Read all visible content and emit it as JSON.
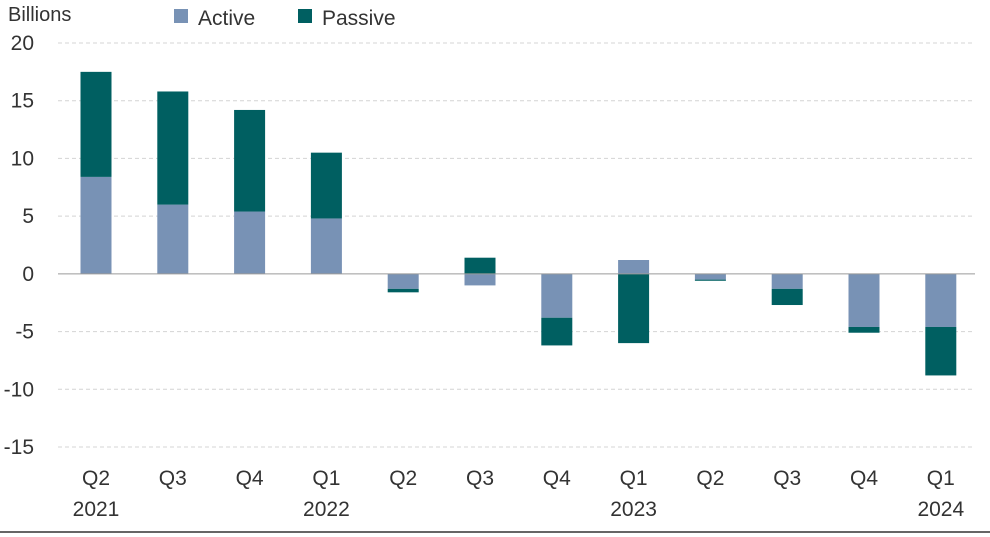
{
  "chart_data": {
    "type": "bar",
    "stacked": true,
    "title": "",
    "xlabel": "",
    "ylabel": "Billions",
    "ylim": [
      -15,
      20
    ],
    "yticks": [
      20,
      15,
      10,
      5,
      0,
      -5,
      -10,
      -15
    ],
    "grid": true,
    "legend_position": "top-left",
    "categories": [
      [
        "Q2",
        "2021"
      ],
      [
        "Q3",
        ""
      ],
      [
        "Q4",
        ""
      ],
      [
        "Q1",
        "2022"
      ],
      [
        "Q2",
        ""
      ],
      [
        "Q3",
        ""
      ],
      [
        "Q4",
        ""
      ],
      [
        "Q1",
        "2023"
      ],
      [
        "Q2",
        ""
      ],
      [
        "Q3",
        ""
      ],
      [
        "Q4",
        ""
      ],
      [
        "Q1",
        "2024"
      ]
    ],
    "series": [
      {
        "name": "Active",
        "color": "#7892b5",
        "values": [
          8.4,
          6.0,
          5.4,
          4.8,
          -1.3,
          -1.0,
          -3.8,
          1.2,
          -0.5,
          -1.3,
          -4.6,
          -4.6
        ]
      },
      {
        "name": "Passive",
        "color": "#005f61",
        "values": [
          9.1,
          9.8,
          8.8,
          5.7,
          -0.3,
          1.4,
          -2.4,
          -6.0,
          -0.1,
          -1.4,
          -0.5,
          -4.2
        ]
      }
    ]
  }
}
